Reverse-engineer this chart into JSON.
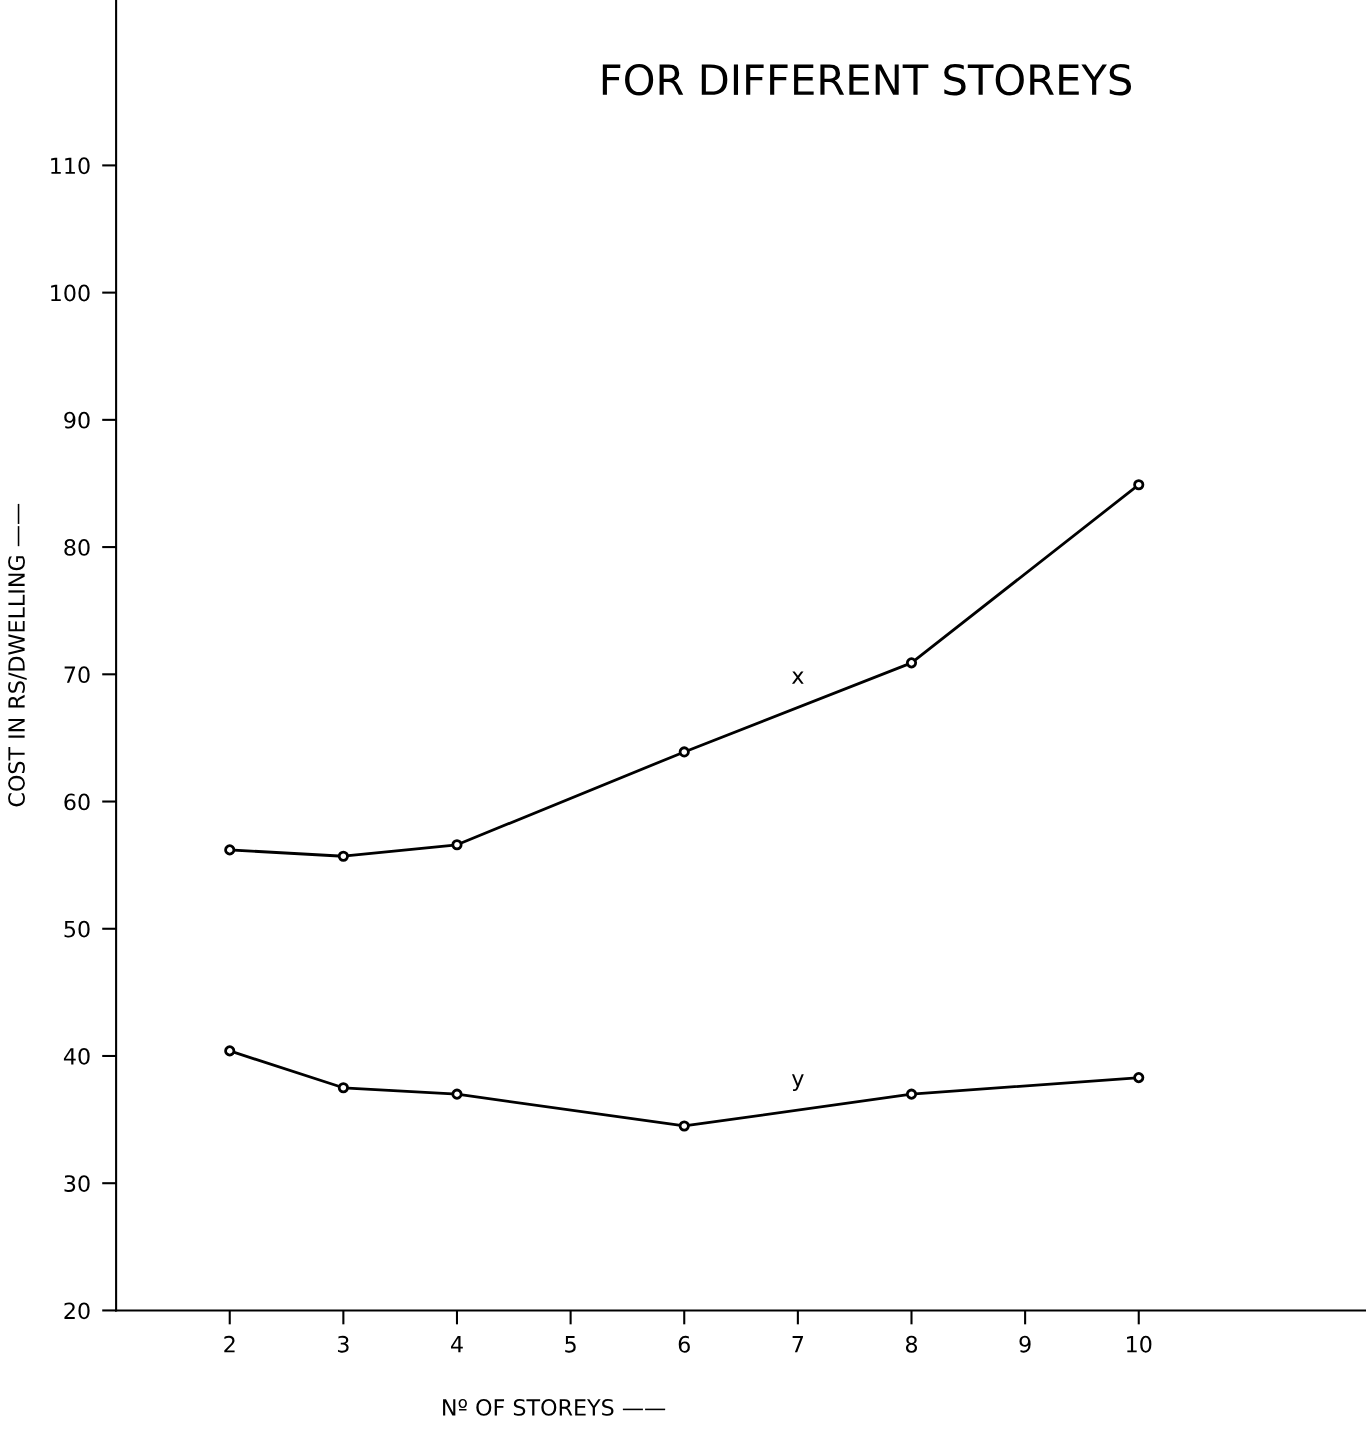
{
  "chart_data": {
    "type": "line",
    "title": "FOR DIFFERENT STOREYS",
    "xlabel": "Nº OF STOREYS ——",
    "ylabel": "COST IN RS/DWELLING ——",
    "x": [
      2,
      3,
      4,
      6,
      8,
      10
    ],
    "series": [
      {
        "name": "x",
        "color": "#000000",
        "values": [
          56.2,
          55.7,
          56.6,
          63.9,
          70.9,
          84.9
        ]
      },
      {
        "name": "y",
        "color": "#000000",
        "values": [
          40.4,
          37.5,
          37.0,
          34.5,
          37.0,
          38.3
        ]
      }
    ],
    "xlim": [
      1,
      12
    ],
    "xticks": [
      2,
      3,
      4,
      5,
      6,
      7,
      8,
      9,
      10
    ],
    "ylim": [
      20,
      123
    ],
    "yticks": [
      20,
      30,
      40,
      50,
      60,
      70,
      80,
      90,
      100,
      110
    ],
    "marker": "circle",
    "line_style": "solid",
    "grid": false,
    "legend": false
  }
}
